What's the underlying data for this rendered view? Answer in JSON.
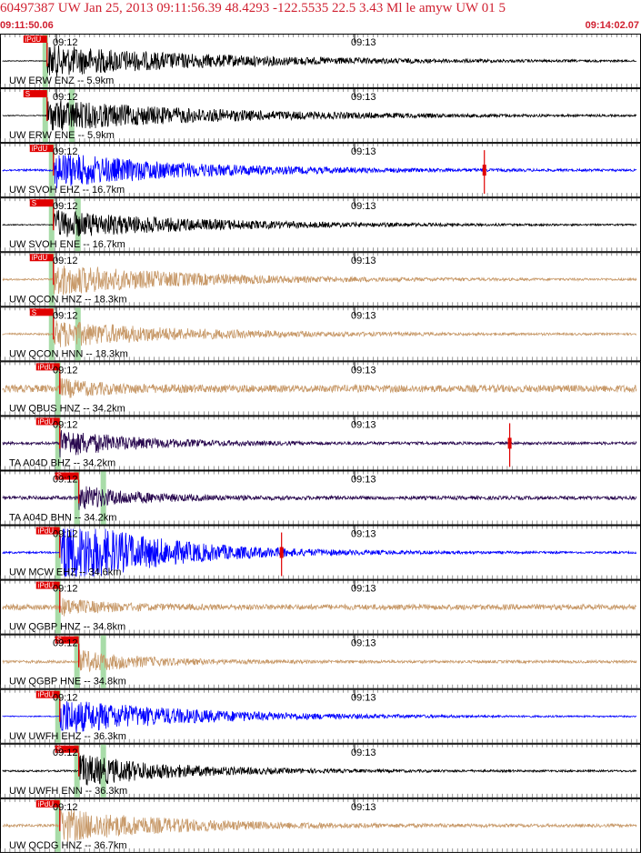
{
  "header": {
    "title": "60497387 UW Jan 25, 2013 09:11:56.39    48.4293 -122.5535 22.5 3.43 Ml le amyw UW 01   5",
    "start_time": "09:11:50.06",
    "end_time": "09:14:02.07"
  },
  "colors": {
    "gray": "#909090",
    "black": "#000000",
    "blue": "#0000ff",
    "tan": "#c89a6a",
    "navy": "#2a0a50",
    "pick": "#e00000",
    "pick_window": "#a8dca8",
    "title": "#d02030"
  },
  "chart_data": {
    "type": "line",
    "title": "60497387 UW Jan 25, 2013 09:11:56.39    48.4293 -122.5535 22.5 3.43 Ml le amyw UW 01   5",
    "time_start": "09:11:50.06",
    "time_end": "09:14:02.07",
    "tick_labels": [
      "09:12",
      "09:13"
    ],
    "grid": true,
    "series": [
      {
        "name": "UW ERW ENZ -- 5.9km",
        "color": "black",
        "pick_label": "iPdU",
        "onset": 0.07,
        "amp": 18,
        "decay": 9,
        "noise": 0.5,
        "clip": false,
        "red_marks": []
      },
      {
        "name": "UW ERW ENE -- 5.9km",
        "color": "black",
        "pick_label": "S",
        "onset": 0.07,
        "amp": 18,
        "decay": 9,
        "noise": 0.5,
        "clip": false,
        "red_marks": []
      },
      {
        "name": "UW SVOH EHZ -- 16.7km",
        "color": "blue",
        "pick_label": "iPdU",
        "onset": 0.08,
        "amp": 20,
        "decay": 7,
        "noise": 1.0,
        "clip": false,
        "red_marks": [
          0.76
        ]
      },
      {
        "name": "UW SVOH ENE -- 16.7km",
        "color": "black",
        "pick_label": "S",
        "onset": 0.08,
        "amp": 16,
        "decay": 8,
        "noise": 0.5,
        "clip": false,
        "red_marks": []
      },
      {
        "name": "UW QCON HNZ -- 18.3km",
        "color": "tan",
        "pick_label": "iPdU",
        "onset": 0.08,
        "amp": 18,
        "decay": 7,
        "noise": 1.0,
        "clip": false,
        "red_marks": []
      },
      {
        "name": "UW QCON HNN -- 18.3km",
        "color": "tan",
        "pick_label": "S",
        "onset": 0.08,
        "amp": 15,
        "decay": 7,
        "noise": 1.0,
        "clip": false,
        "red_marks": []
      },
      {
        "name": "UW QBUS HNZ -- 34.2km",
        "color": "tan",
        "pick_label": "iPdU",
        "onset": 0.09,
        "amp": 8,
        "decay": 2.5,
        "noise": 4.0,
        "clip": false,
        "red_marks": []
      },
      {
        "name": "TA A04D BHZ -- 34.2km",
        "color": "navy",
        "pick_label": "iPdU",
        "onset": 0.09,
        "amp": 15,
        "decay": 4,
        "noise": 1.5,
        "clip": false,
        "red_marks": [
          0.8
        ]
      },
      {
        "name": "TA A04D BHN -- 34.2km",
        "color": "navy",
        "pick_label": "S",
        "onset": 0.12,
        "amp": 13,
        "decay": 3,
        "noise": 2.0,
        "clip": false,
        "red_marks": []
      },
      {
        "name": "UW MCW EHZ -- 34.6km",
        "color": "blue",
        "pick_label": "iPdU",
        "onset": 0.09,
        "amp": 30,
        "decay": 5,
        "noise": 1.0,
        "clip": true,
        "red_marks": [
          0.44
        ]
      },
      {
        "name": "UW QGBP HNZ -- 34.8km",
        "color": "tan",
        "pick_label": "iPdU",
        "onset": 0.09,
        "amp": 8,
        "decay": 2.5,
        "noise": 3.0,
        "clip": false,
        "red_marks": []
      },
      {
        "name": "UW QGBP HNE -- 34.8km",
        "color": "tan",
        "pick_label": "S",
        "onset": 0.12,
        "amp": 12,
        "decay": 3.5,
        "noise": 1.5,
        "clip": false,
        "red_marks": []
      },
      {
        "name": "UW UWFH EHZ -- 36.3km",
        "color": "blue",
        "pick_label": "iPdU",
        "onset": 0.09,
        "amp": 20,
        "decay": 7,
        "noise": 0.5,
        "clip": false,
        "red_marks": []
      },
      {
        "name": "UW UWFH ENN -- 36.3km",
        "color": "black",
        "pick_label": "S",
        "onset": 0.12,
        "amp": 18,
        "decay": 5,
        "noise": 1.0,
        "clip": false,
        "red_marks": []
      },
      {
        "name": "UW QCDG HNZ -- 36.7km",
        "color": "tan",
        "pick_label": "iPdU",
        "onset": 0.09,
        "amp": 18,
        "decay": 6,
        "noise": 1.5,
        "clip": false,
        "red_marks": []
      }
    ]
  }
}
